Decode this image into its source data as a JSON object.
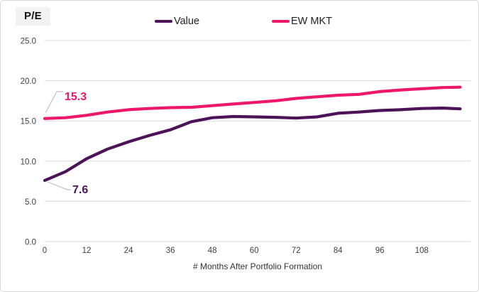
{
  "window": {
    "background": "#ffffff",
    "border_color": "#d9d9d9"
  },
  "header": {
    "unit_label": "P/E",
    "legend": [
      {
        "label": "Value",
        "color": "#4C1358"
      },
      {
        "label": "EW MKT",
        "color": "#EE186B"
      }
    ]
  },
  "chart_data": {
    "type": "line",
    "title": "",
    "xlabel": "# Months After Portfolio Formation",
    "ylabel": "P/E",
    "xlim": [
      0,
      122
    ],
    "ylim": [
      0,
      25
    ],
    "grid": "horizontal",
    "grid_color": "#d9d9d9",
    "legend_position": "top-center",
    "axis_text_color": "#404040",
    "x_ticks": [
      0,
      12,
      24,
      36,
      48,
      60,
      72,
      84,
      96,
      108
    ],
    "y_ticks": [
      0,
      5,
      10,
      15,
      20,
      25
    ],
    "y_tick_labels": [
      "0.0",
      "5.0",
      "10.0",
      "15.0",
      "20.0",
      "25.0"
    ],
    "x": [
      0,
      6,
      12,
      18,
      24,
      30,
      36,
      42,
      48,
      54,
      60,
      66,
      72,
      78,
      84,
      90,
      96,
      102,
      108,
      114,
      119
    ],
    "series": [
      {
        "name": "Value",
        "color": "#4C1358",
        "values": [
          7.6,
          8.7,
          10.3,
          11.5,
          12.4,
          13.2,
          13.9,
          14.9,
          15.4,
          15.55,
          15.5,
          15.45,
          15.35,
          15.5,
          15.95,
          16.1,
          16.3,
          16.4,
          16.55,
          16.6,
          16.5
        ]
      },
      {
        "name": "EW MKT",
        "color": "#EE186B",
        "values": [
          15.3,
          15.4,
          15.7,
          16.1,
          16.4,
          16.55,
          16.65,
          16.7,
          16.9,
          17.1,
          17.3,
          17.5,
          17.8,
          18.0,
          18.2,
          18.3,
          18.65,
          18.85,
          19.0,
          19.15,
          19.2
        ]
      }
    ],
    "annotations": [
      {
        "series": "EW MKT",
        "text": "15.3",
        "color": "#EE186B"
      },
      {
        "series": "Value",
        "text": "7.6",
        "color": "#4C1358"
      }
    ],
    "annotation_leader_color": "#bfbfbf"
  }
}
